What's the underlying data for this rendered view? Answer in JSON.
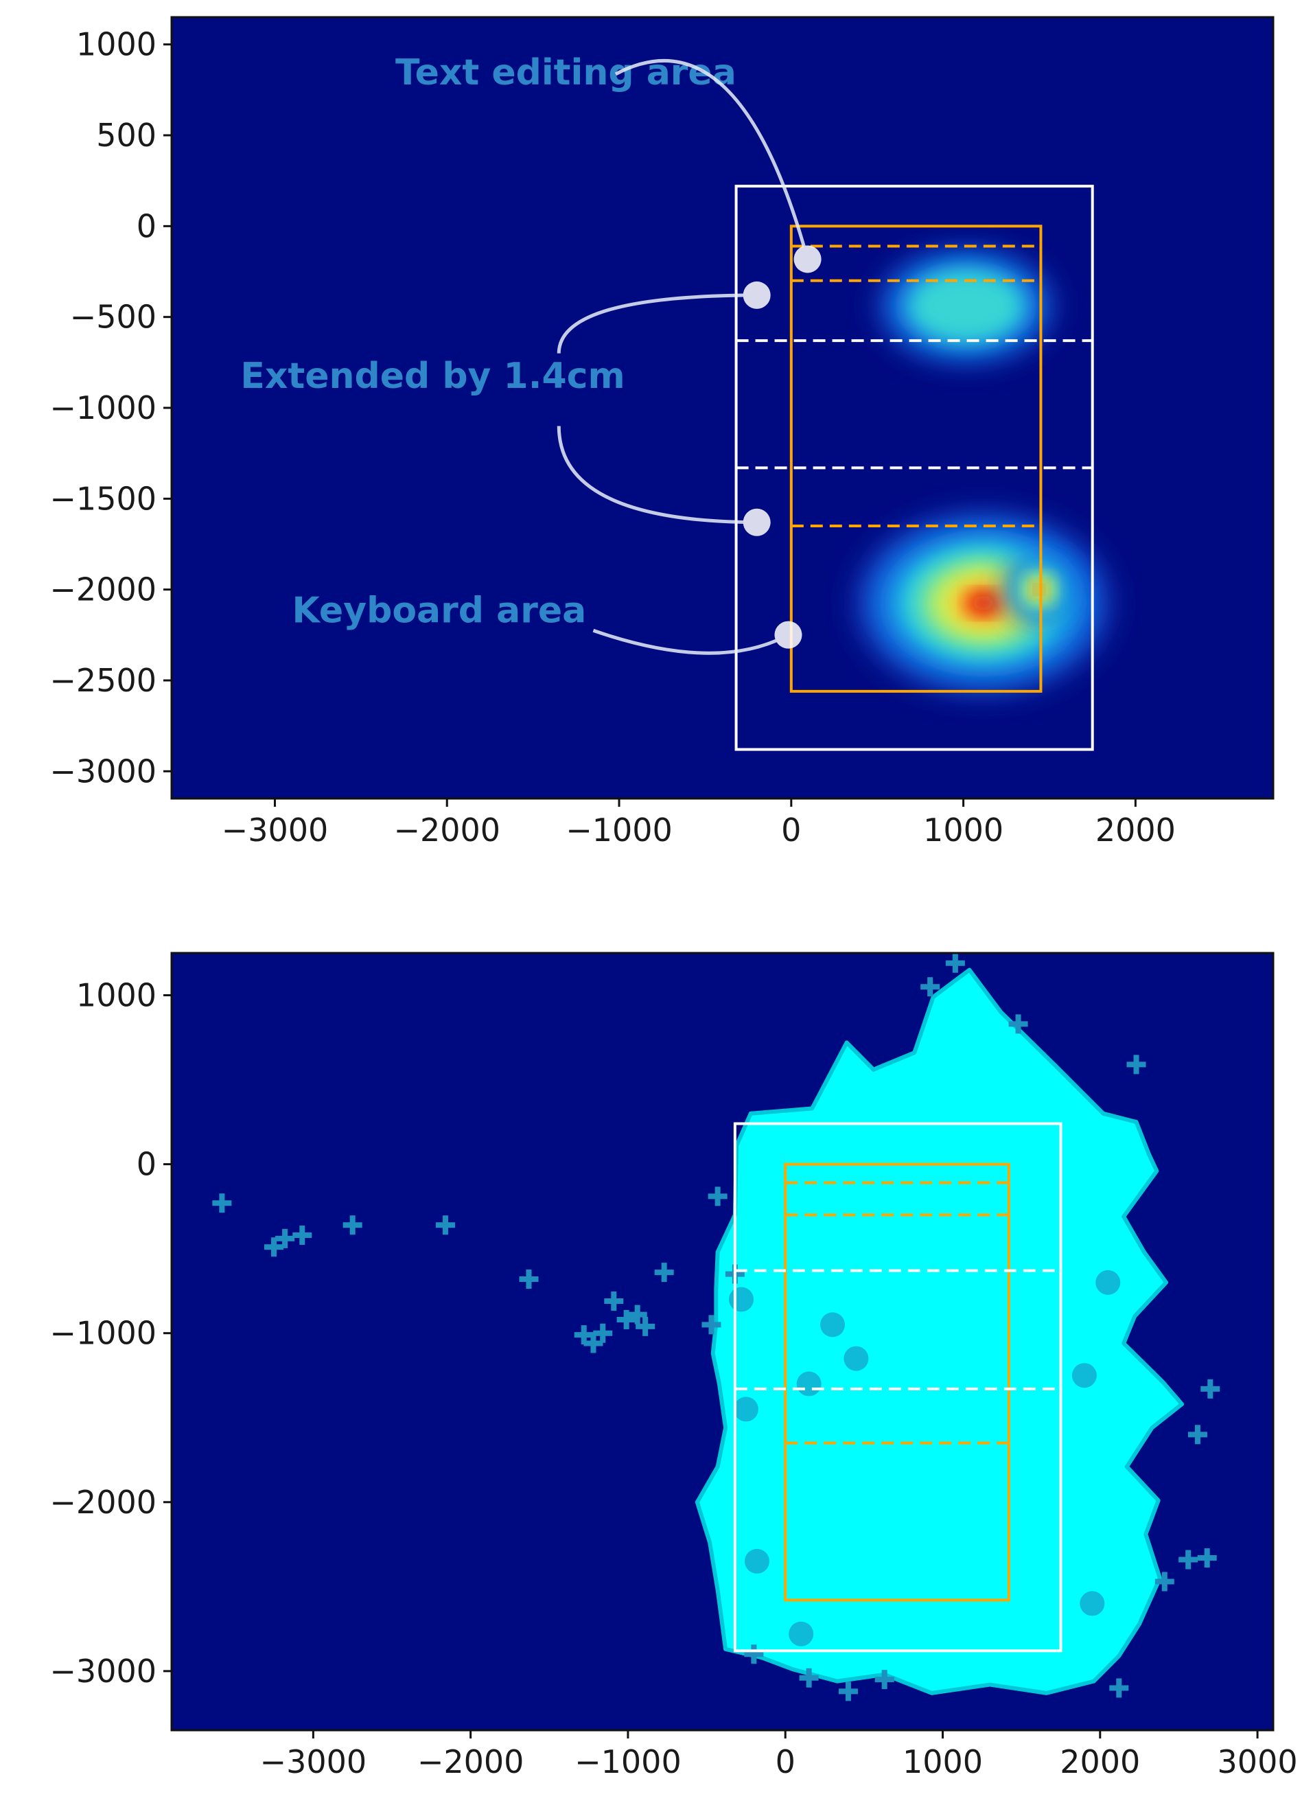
{
  "chart_data": [
    {
      "type": "heatmap",
      "title": "",
      "xlabel": "",
      "ylabel": "",
      "xlim": [
        -3600,
        2800
      ],
      "ylim": [
        -3150,
        1150
      ],
      "xticks": [
        -3000,
        -2000,
        -1000,
        0,
        1000,
        2000
      ],
      "xtick_labels": [
        "−3000",
        "−2000",
        "−1000",
        "0",
        "1000",
        "2000"
      ],
      "yticks": [
        1000,
        500,
        0,
        -500,
        -1000,
        -1500,
        -2000,
        -2500,
        -3000
      ],
      "ytick_labels": [
        "1000",
        "500",
        "0",
        "−500",
        "−1000",
        "−1500",
        "−2000",
        "−2500",
        "−3000"
      ],
      "grid": false,
      "colormap": "jet",
      "background_color": "#000a80",
      "boxes": [
        {
          "name": "extended",
          "color": "#ffffff",
          "x": [
            -320,
            1750
          ],
          "y": [
            -2880,
            220
          ]
        },
        {
          "name": "screen",
          "color": "#ffa500",
          "x": [
            0,
            1450
          ],
          "y": [
            -2560,
            0
          ]
        }
      ],
      "dashed_lines": [
        {
          "color": "#ffa500",
          "y": -110,
          "x": [
            0,
            1450
          ]
        },
        {
          "color": "#ffa500",
          "y": -300,
          "x": [
            0,
            1450
          ]
        },
        {
          "color": "#ffffff",
          "y": -630,
          "x": [
            -320,
            1750
          ]
        },
        {
          "color": "#ffffff",
          "y": -1330,
          "x": [
            -320,
            1750
          ]
        },
        {
          "color": "#ffa500",
          "y": -1650,
          "x": [
            0,
            1450
          ]
        }
      ],
      "density_clusters": [
        {
          "name": "text-editing-cluster",
          "x": [
            580,
            1450
          ],
          "y": [
            -700,
            -180
          ],
          "peak": 0.45
        },
        {
          "name": "keyboard-cluster",
          "x": [
            480,
            1750
          ],
          "y": [
            -2500,
            -1650
          ],
          "peak": 1.0
        },
        {
          "name": "keyboard-hotspot",
          "x": [
            1280,
            1600
          ],
          "y": [
            -2150,
            -1850
          ],
          "peak": 1.0
        }
      ],
      "annotations": [
        {
          "text": "Text editing area",
          "xy": [
            100,
            -200
          ],
          "text_xy": [
            -2300,
            780
          ]
        },
        {
          "text": "Extended by 1.4cm",
          "xy": [
            -180,
            -380
          ],
          "text_xy": [
            -3200,
            -890
          ]
        },
        {
          "text": "Extended by 1.4cm",
          "xy": [
            -180,
            -1630
          ],
          "text_xy": [
            -3200,
            -890
          ]
        },
        {
          "text": "Keyboard area",
          "xy": [
            0,
            -2240
          ],
          "text_xy": [
            -2900,
            -2180
          ]
        }
      ],
      "annotation_color": "#2f86c8"
    },
    {
      "type": "scatter",
      "title": "",
      "xlabel": "",
      "ylabel": "",
      "marker": "+",
      "marker_color": "#00ffff",
      "background_color": "#000a80",
      "xlim": [
        -3900,
        3100
      ],
      "ylim": [
        -3350,
        1250
      ],
      "xticks": [
        -3000,
        -2000,
        -1000,
        0,
        1000,
        2000,
        3000
      ],
      "xtick_labels": [
        "−3000",
        "−2000",
        "−1000",
        "0",
        "1000",
        "2000",
        "3000"
      ],
      "yticks": [
        1000,
        0,
        -1000,
        -2000,
        -3000
      ],
      "ytick_labels": [
        "1000",
        "0",
        "−1000",
        "−2000",
        "−3000"
      ],
      "grid": false,
      "boxes": [
        {
          "name": "extended",
          "color": "#ffffff",
          "x": [
            -320,
            1750
          ],
          "y": [
            -2880,
            240
          ]
        },
        {
          "name": "screen",
          "color": "#ffa500",
          "x": [
            0,
            1420
          ],
          "y": [
            -2580,
            0
          ]
        }
      ],
      "dashed_lines": [
        {
          "color": "#ffa500",
          "y": -110,
          "x": [
            0,
            1420
          ]
        },
        {
          "color": "#ffa500",
          "y": -300,
          "x": [
            0,
            1420
          ]
        },
        {
          "color": "#ffffff",
          "y": -630,
          "x": [
            -320,
            1750
          ]
        },
        {
          "color": "#ffffff",
          "y": -1330,
          "x": [
            -320,
            1750
          ]
        },
        {
          "color": "#ffa500",
          "y": -1650,
          "x": [
            0,
            1420
          ]
        }
      ],
      "outlier_points": [
        [
          -3580,
          -230
        ],
        [
          -3250,
          -490
        ],
        [
          -3180,
          -440
        ],
        [
          -3070,
          -420
        ],
        [
          -2750,
          -360
        ],
        [
          -2160,
          -360
        ],
        [
          -1630,
          -680
        ],
        [
          -1280,
          -1010
        ],
        [
          -1220,
          -1060
        ],
        [
          -1160,
          -1000
        ],
        [
          -1090,
          -810
        ],
        [
          -1010,
          -920
        ],
        [
          -940,
          -890
        ],
        [
          -890,
          -960
        ],
        [
          -770,
          -640
        ],
        [
          -470,
          -950
        ],
        [
          -430,
          -190
        ],
        [
          -320,
          -650
        ],
        [
          2410,
          -2470
        ],
        [
          2560,
          -2340
        ],
        [
          2680,
          -2330
        ],
        [
          2700,
          -1330
        ],
        [
          2620,
          -1600
        ],
        [
          1480,
          830
        ],
        [
          1080,
          1190
        ],
        [
          920,
          1050
        ],
        [
          2230,
          590
        ],
        [
          -200,
          -2900
        ],
        [
          150,
          -3040
        ],
        [
          400,
          -3120
        ],
        [
          630,
          -3050
        ],
        [
          2120,
          -3100
        ]
      ],
      "filled_region_outline": [
        [
          -380,
          -2870
        ],
        [
          -430,
          -2520
        ],
        [
          -480,
          -2240
        ],
        [
          -560,
          -2000
        ],
        [
          -430,
          -1790
        ],
        [
          -380,
          -1560
        ],
        [
          -420,
          -1300
        ],
        [
          -460,
          -1120
        ],
        [
          -440,
          -940
        ],
        [
          -440,
          -740
        ],
        [
          -430,
          -520
        ],
        [
          -320,
          -300
        ],
        [
          -310,
          110
        ],
        [
          -220,
          300
        ],
        [
          170,
          330
        ],
        [
          390,
          720
        ],
        [
          560,
          560
        ],
        [
          820,
          660
        ],
        [
          940,
          990
        ],
        [
          1170,
          1150
        ],
        [
          1370,
          900
        ],
        [
          1720,
          580
        ],
        [
          2020,
          300
        ],
        [
          2230,
          250
        ],
        [
          2310,
          60
        ],
        [
          2360,
          -40
        ],
        [
          2150,
          -310
        ],
        [
          2280,
          -520
        ],
        [
          2420,
          -700
        ],
        [
          2220,
          -900
        ],
        [
          2150,
          -1060
        ],
        [
          2400,
          -1290
        ],
        [
          2520,
          -1420
        ],
        [
          2330,
          -1560
        ],
        [
          2170,
          -1790
        ],
        [
          2370,
          -1990
        ],
        [
          2290,
          -2190
        ],
        [
          2380,
          -2450
        ],
        [
          2250,
          -2720
        ],
        [
          2120,
          -2910
        ],
        [
          1960,
          -3060
        ],
        [
          1660,
          -3130
        ],
        [
          1300,
          -3080
        ],
        [
          930,
          -3130
        ],
        [
          630,
          -3020
        ],
        [
          330,
          -3060
        ],
        [
          50,
          -2990
        ],
        [
          -150,
          -2920
        ]
      ]
    }
  ]
}
